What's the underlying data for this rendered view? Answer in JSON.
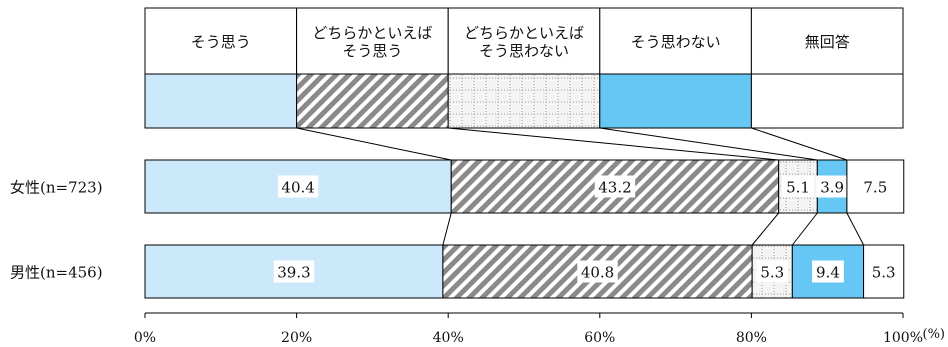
{
  "chart_data": {
    "type": "bar",
    "orientation": "horizontal",
    "stacked": true,
    "unit": "(%)",
    "xlim": [
      0,
      100
    ],
    "x_ticks": [
      "0%",
      "20%",
      "40%",
      "60%",
      "80%",
      "100%"
    ],
    "legend_position": "top",
    "categories": [
      "女性(n=723)",
      "男性(n=456)"
    ],
    "series": [
      {
        "name": "そう思う",
        "values": [
          40.4,
          39.3
        ],
        "fill": "#cce9fb",
        "pattern": "solid"
      },
      {
        "name": "どちらかといえば\nそう思う",
        "values": [
          43.2,
          40.8
        ],
        "fill": "#888888",
        "pattern": "diagonal-hatch"
      },
      {
        "name": "どちらかといえば\nそう思わない",
        "values": [
          5.1,
          5.3
        ],
        "fill": "#d9d9d9",
        "pattern": "dotted-grid"
      },
      {
        "name": "そう思わない",
        "values": [
          3.9,
          9.4
        ],
        "fill": "#66c7f5",
        "pattern": "solid"
      },
      {
        "name": "無回答",
        "values": [
          7.5,
          5.3
        ],
        "fill": "#ffffff",
        "pattern": "solid"
      }
    ],
    "connector_lines": true,
    "grid": false
  }
}
